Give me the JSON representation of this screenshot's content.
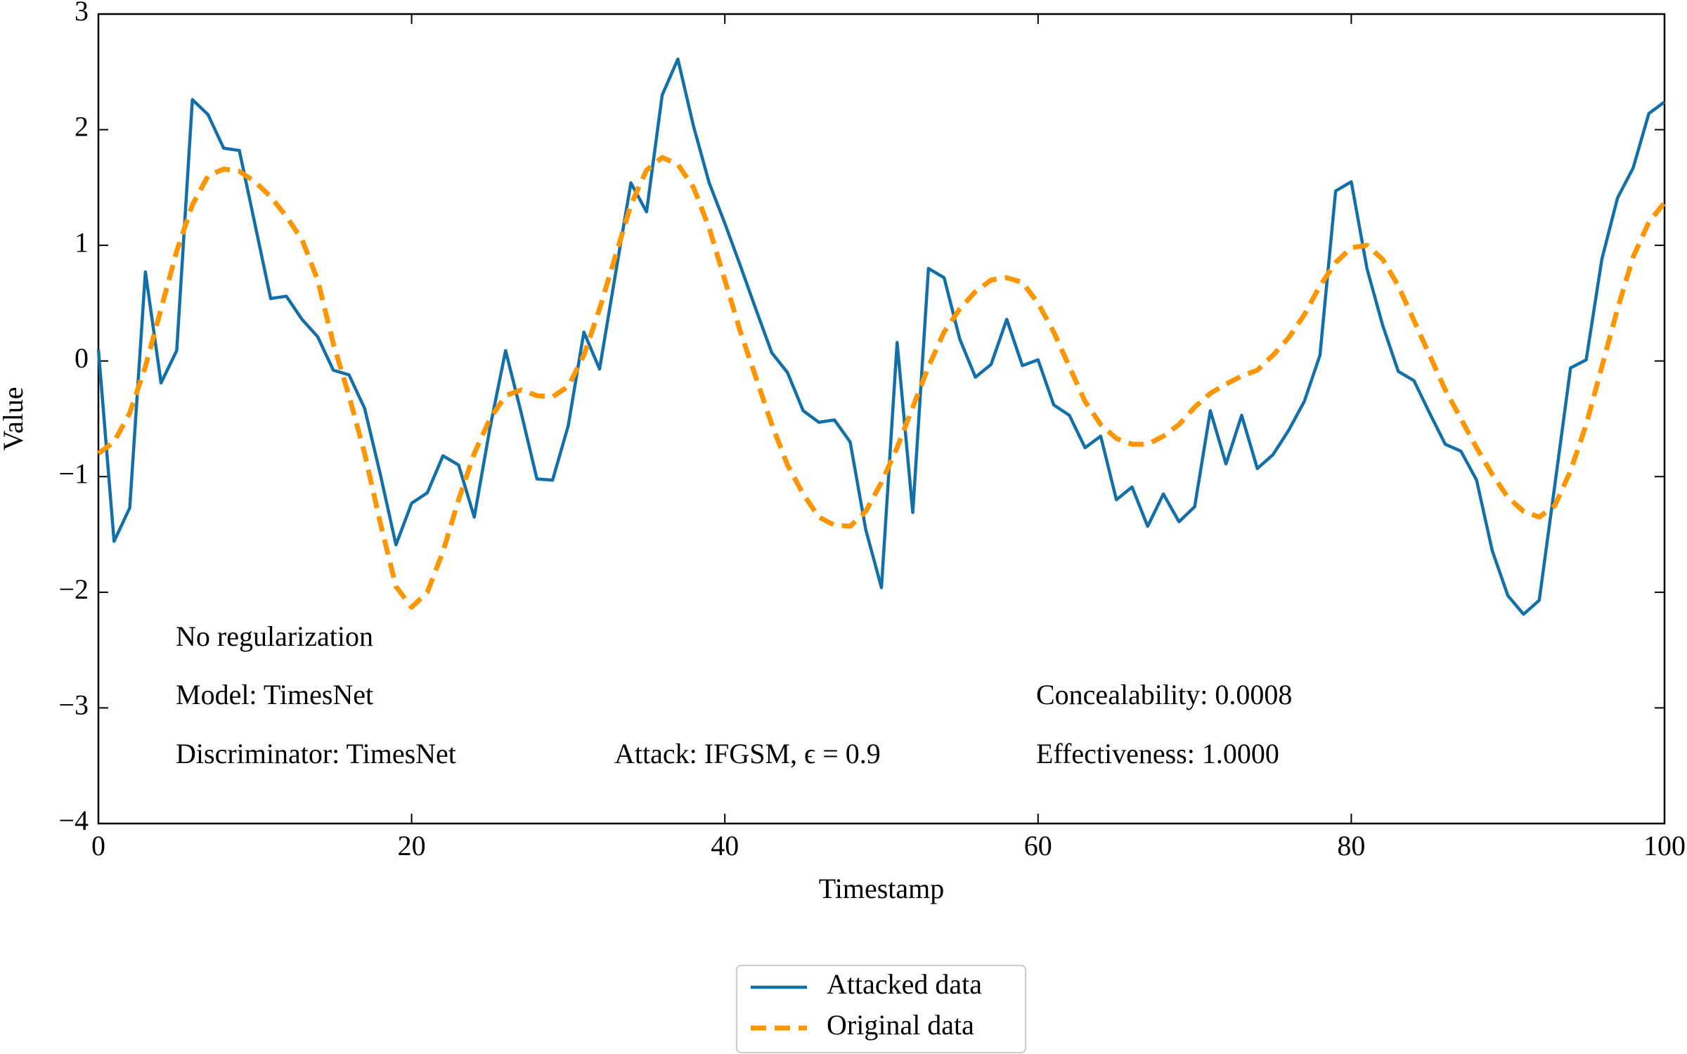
{
  "chart_data": {
    "type": "line",
    "xlabel": "Timestamp",
    "ylabel": "Value",
    "x": [
      0,
      1,
      2,
      3,
      4,
      5,
      6,
      7,
      8,
      9,
      10,
      11,
      12,
      13,
      14,
      15,
      16,
      17,
      18,
      19,
      20,
      21,
      22,
      23,
      24,
      25,
      26,
      27,
      28,
      29,
      30,
      31,
      32,
      33,
      34,
      35,
      36,
      37,
      38,
      39,
      40,
      41,
      42,
      43,
      44,
      45,
      46,
      47,
      48,
      49,
      50,
      51,
      52,
      53,
      54,
      55,
      56,
      57,
      58,
      59,
      60,
      61,
      62,
      63,
      64,
      65,
      66,
      67,
      68,
      69,
      70,
      71,
      72,
      73,
      74,
      75,
      76,
      77,
      78,
      79,
      80,
      81,
      82,
      83,
      84,
      85,
      86,
      87,
      88,
      89,
      90,
      91,
      92,
      93,
      94,
      95,
      96,
      97,
      98,
      99,
      100
    ],
    "series": [
      {
        "name": "Attacked data",
        "color": "#1170aa",
        "dash": false,
        "values": [
          0.1,
          -1.56,
          -1.27,
          0.77,
          -0.19,
          0.09,
          2.26,
          2.13,
          1.84,
          1.82,
          1.18,
          0.54,
          0.56,
          0.36,
          0.21,
          -0.08,
          -0.12,
          -0.41,
          -0.98,
          -1.59,
          -1.23,
          -1.14,
          -0.82,
          -0.9,
          -1.35,
          -0.58,
          0.09,
          -0.45,
          -1.02,
          -1.03,
          -0.56,
          0.25,
          -0.07,
          0.74,
          1.54,
          1.29,
          2.3,
          2.61,
          2.03,
          1.54,
          1.19,
          0.82,
          0.44,
          0.07,
          -0.1,
          -0.43,
          -0.53,
          -0.51,
          -0.7,
          -1.46,
          -1.96,
          0.16,
          -1.31,
          0.8,
          0.72,
          0.19,
          -0.14,
          -0.03,
          0.36,
          -0.04,
          0.01,
          -0.38,
          -0.47,
          -0.75,
          -0.65,
          -1.2,
          -1.09,
          -1.43,
          -1.15,
          -1.39,
          -1.26,
          -0.43,
          -0.89,
          -0.47,
          -0.93,
          -0.81,
          -0.6,
          -0.35,
          0.05,
          1.47,
          1.55,
          0.8,
          0.31,
          -0.09,
          -0.17,
          -0.45,
          -0.72,
          -0.78,
          -1.03,
          -1.64,
          -2.03,
          -2.19,
          -2.07,
          -1.07,
          -0.06,
          0.01,
          0.88,
          1.41,
          1.67,
          2.14,
          2.24
        ]
      },
      {
        "name": "Original data",
        "color": "#ff9500",
        "dash": true,
        "values": [
          -0.8,
          -0.7,
          -0.45,
          -0.05,
          0.45,
          0.95,
          1.35,
          1.6,
          1.66,
          1.64,
          1.55,
          1.42,
          1.25,
          1.05,
          0.7,
          0.15,
          -0.3,
          -0.8,
          -1.4,
          -1.95,
          -2.13,
          -2.0,
          -1.65,
          -1.2,
          -0.8,
          -0.5,
          -0.3,
          -0.25,
          -0.3,
          -0.31,
          -0.22,
          0.05,
          0.45,
          0.9,
          1.35,
          1.65,
          1.76,
          1.7,
          1.5,
          1.15,
          0.7,
          0.25,
          -0.15,
          -0.55,
          -0.9,
          -1.15,
          -1.35,
          -1.42,
          -1.43,
          -1.3,
          -1.05,
          -0.75,
          -0.4,
          -0.05,
          0.25,
          0.45,
          0.6,
          0.7,
          0.72,
          0.68,
          0.5,
          0.25,
          -0.05,
          -0.35,
          -0.55,
          -0.67,
          -0.72,
          -0.72,
          -0.65,
          -0.55,
          -0.4,
          -0.28,
          -0.2,
          -0.13,
          -0.08,
          0.05,
          0.2,
          0.4,
          0.65,
          0.85,
          0.98,
          1.0,
          0.88,
          0.65,
          0.35,
          0.05,
          -0.25,
          -0.5,
          -0.75,
          -0.98,
          -1.18,
          -1.3,
          -1.35,
          -1.25,
          -0.95,
          -0.55,
          -0.05,
          0.45,
          0.9,
          1.2,
          1.37
        ]
      }
    ],
    "xlim": [
      0,
      100
    ],
    "xticks": [
      0,
      20,
      40,
      60,
      80,
      100
    ],
    "ylim": [
      -4,
      3
    ],
    "yticks": [
      {
        "value": -4,
        "label": "−4"
      },
      {
        "value": -3,
        "label": "−3"
      },
      {
        "value": -2,
        "label": "−2"
      },
      {
        "value": -1,
        "label": "−1"
      },
      0,
      1,
      2,
      3
    ],
    "annotations": [
      "No regularization",
      "Model: TimesNet",
      "Discriminator: TimesNet",
      "Attack: IFGSM, ϵ = 0.9",
      "Concealability: 0.0008",
      "Effectiveness: 1.0000"
    ],
    "legend": "lower center",
    "grid": false
  }
}
